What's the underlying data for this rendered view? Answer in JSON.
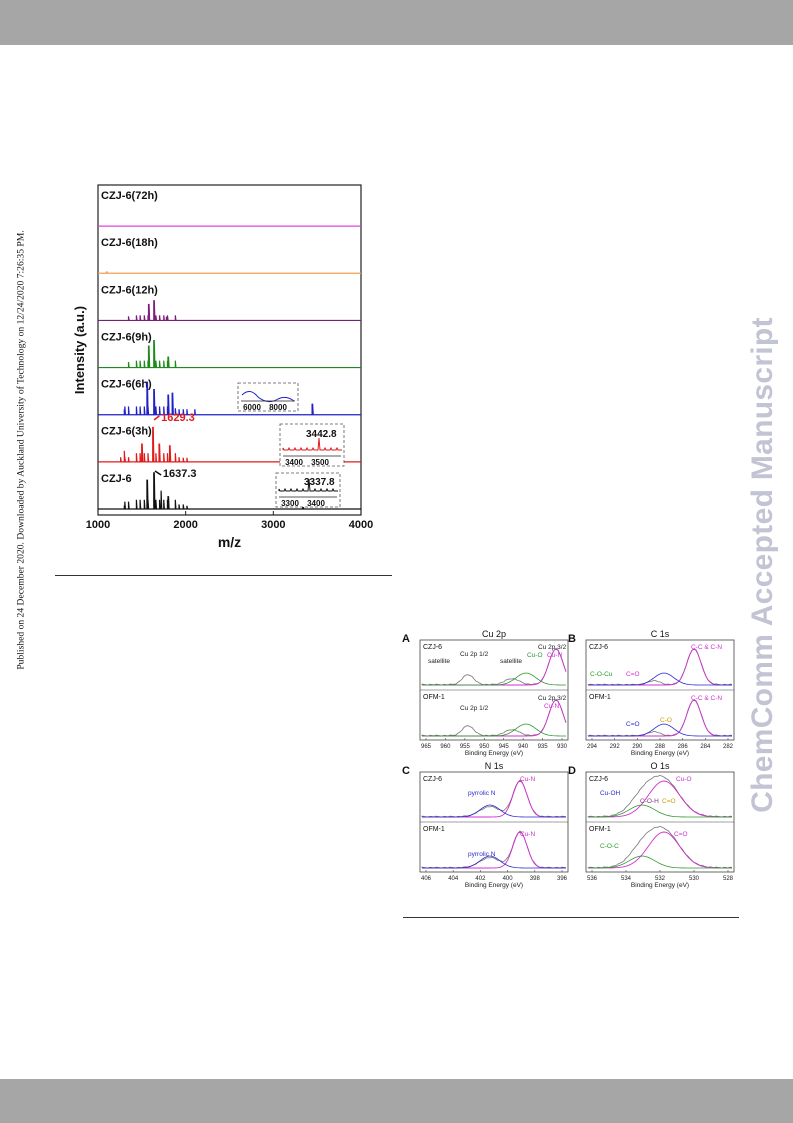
{
  "side_note": "Published on 24 December 2020. Downloaded by Auckland University of Technology on 12/24/2020 7:26:35 PM.",
  "watermark": "ChemComm Accepted Manuscript",
  "chart_data": [
    {
      "type": "line",
      "xlabel": "m/z",
      "ylabel": "Intensity (a.u.)",
      "xlim": [
        1000,
        4000
      ],
      "xticks": [
        1000,
        2000,
        3000,
        4000
      ],
      "series": [
        {
          "name": "CZJ-6(72h)",
          "color": "#e040e0",
          "peaks": []
        },
        {
          "name": "CZJ-6(18h)",
          "color": "#f0a050",
          "peaks": [
            [
              1100,
              0.05
            ]
          ]
        },
        {
          "name": "CZJ-6(12h)",
          "color": "#7b1f7b",
          "peaks": [
            [
              1580,
              0.45
            ],
            [
              1637,
              0.55
            ],
            [
              1780,
              0.1
            ]
          ]
        },
        {
          "name": "CZJ-6(9h)",
          "color": "#1e8a1e",
          "peaks": [
            [
              1580,
              0.6
            ],
            [
              1637,
              0.75
            ],
            [
              1800,
              0.3
            ]
          ]
        },
        {
          "name": "CZJ-6(6h)",
          "color": "#2020c8",
          "peaks": [
            [
              1300,
              0.15
            ],
            [
              1560,
              0.9
            ],
            [
              1637,
              0.7
            ],
            [
              1800,
              0.55
            ],
            [
              1850,
              0.6
            ],
            [
              3442.8,
              0.3
            ]
          ]
        },
        {
          "name": "CZJ-6(3h)",
          "color": "#e01b1b",
          "peaks": [
            [
              1300,
              0.3
            ],
            [
              1500,
              0.5
            ],
            [
              1629.3,
              0.95
            ],
            [
              1700,
              0.5
            ],
            [
              1820,
              0.45
            ],
            [
              3442.8,
              0.1
            ]
          ]
        },
        {
          "name": "CZJ-6",
          "color": "#111111",
          "peaks": [
            [
              1300,
              0.1
            ],
            [
              1560,
              0.8
            ],
            [
              1637.3,
              1.0
            ],
            [
              1720,
              0.5
            ],
            [
              1800,
              0.35
            ],
            [
              3337.8,
              0.12
            ]
          ]
        }
      ],
      "annotations": [
        {
          "label": "1629.3",
          "color": "#e01b1b"
        },
        {
          "label": "1637.3",
          "color": "#111111"
        },
        {
          "label": "3442.8",
          "color": "#111111"
        },
        {
          "label": "3337.8",
          "color": "#111111"
        }
      ],
      "insets": [
        {
          "ticks": [
            "6000",
            "8000"
          ],
          "color": "#2020c8"
        },
        {
          "ticks": [
            "3400",
            "3500"
          ],
          "color": "#e01b1b"
        },
        {
          "ticks": [
            "3300",
            "3400"
          ],
          "color": "#111111"
        }
      ]
    },
    {
      "type": "line",
      "panels": [
        {
          "letter": "A",
          "title": "Cu 2p",
          "xlabel": "Binding Energy (eV)",
          "xticks": [
            "965",
            "960",
            "955",
            "950",
            "945",
            "940",
            "935",
            "930"
          ],
          "samples": [
            "CZJ-6",
            "OFM-1"
          ],
          "labels_top": [
            {
              "text": "satellite",
              "color": "#222222"
            },
            {
              "text": "Cu 2p 1/2",
              "color": "#222222"
            },
            {
              "text": "satellite",
              "color": "#222222"
            },
            {
              "text": "Cu 2p 3/2",
              "color": "#222222"
            },
            {
              "text": "Cu-O",
              "color": "#2a9a2a"
            },
            {
              "text": "Cu-N",
              "color": "#d030d0"
            }
          ],
          "labels_bottom": [
            {
              "text": "Cu 2p 1/2",
              "color": "#222222"
            },
            {
              "text": "Cu 2p 3/2",
              "color": "#222222"
            },
            {
              "text": "Cu-N",
              "color": "#d030d0"
            }
          ]
        },
        {
          "letter": "B",
          "title": "C 1s",
          "xlabel": "Binding Energy (eV)",
          "xticks": [
            "294",
            "292",
            "290",
            "288",
            "286",
            "284",
            "282"
          ],
          "samples": [
            "CZJ-6",
            "OFM-1"
          ],
          "labels_top": [
            {
              "text": "C-C & C-N",
              "color": "#d030d0"
            },
            {
              "text": "C-O-Cu",
              "color": "#2a9a2a"
            },
            {
              "text": "C=O",
              "color": "#d030d0"
            }
          ],
          "labels_bottom": [
            {
              "text": "C-C & C-N",
              "color": "#d030d0"
            },
            {
              "text": "C=O",
              "color": "#2a2ad0"
            },
            {
              "text": "C-O",
              "color": "#c8a000"
            }
          ]
        },
        {
          "letter": "C",
          "title": "N 1s",
          "xlabel": "Binding Energy (eV)",
          "xticks": [
            "406",
            "404",
            "402",
            "400",
            "398",
            "396"
          ],
          "samples": [
            "CZJ-6",
            "OFM-1"
          ],
          "labels_top": [
            {
              "text": "Cu-N",
              "color": "#d030d0"
            },
            {
              "text": "pyrrolic N",
              "color": "#2a2ad0"
            }
          ],
          "labels_bottom": [
            {
              "text": "Cu-N",
              "color": "#d030d0"
            },
            {
              "text": "pyrrolic N",
              "color": "#2a2ad0"
            }
          ]
        },
        {
          "letter": "D",
          "title": "O 1s",
          "xlabel": "Binding Energy (eV)",
          "xticks": [
            "536",
            "534",
            "532",
            "530",
            "528"
          ],
          "samples": [
            "CZJ-6",
            "OFM-1"
          ],
          "labels_top": [
            {
              "text": "Cu-O",
              "color": "#d030d0"
            },
            {
              "text": "Cu-OH",
              "color": "#2a2ad0"
            },
            {
              "text": "C-O-H",
              "color": "#7a3a7a"
            },
            {
              "text": "C=O",
              "color": "#c8a000"
            }
          ],
          "labels_bottom": [
            {
              "text": "C-O-C",
              "color": "#2a9a2a"
            },
            {
              "text": "C=O",
              "color": "#d030d0"
            }
          ]
        }
      ]
    }
  ]
}
